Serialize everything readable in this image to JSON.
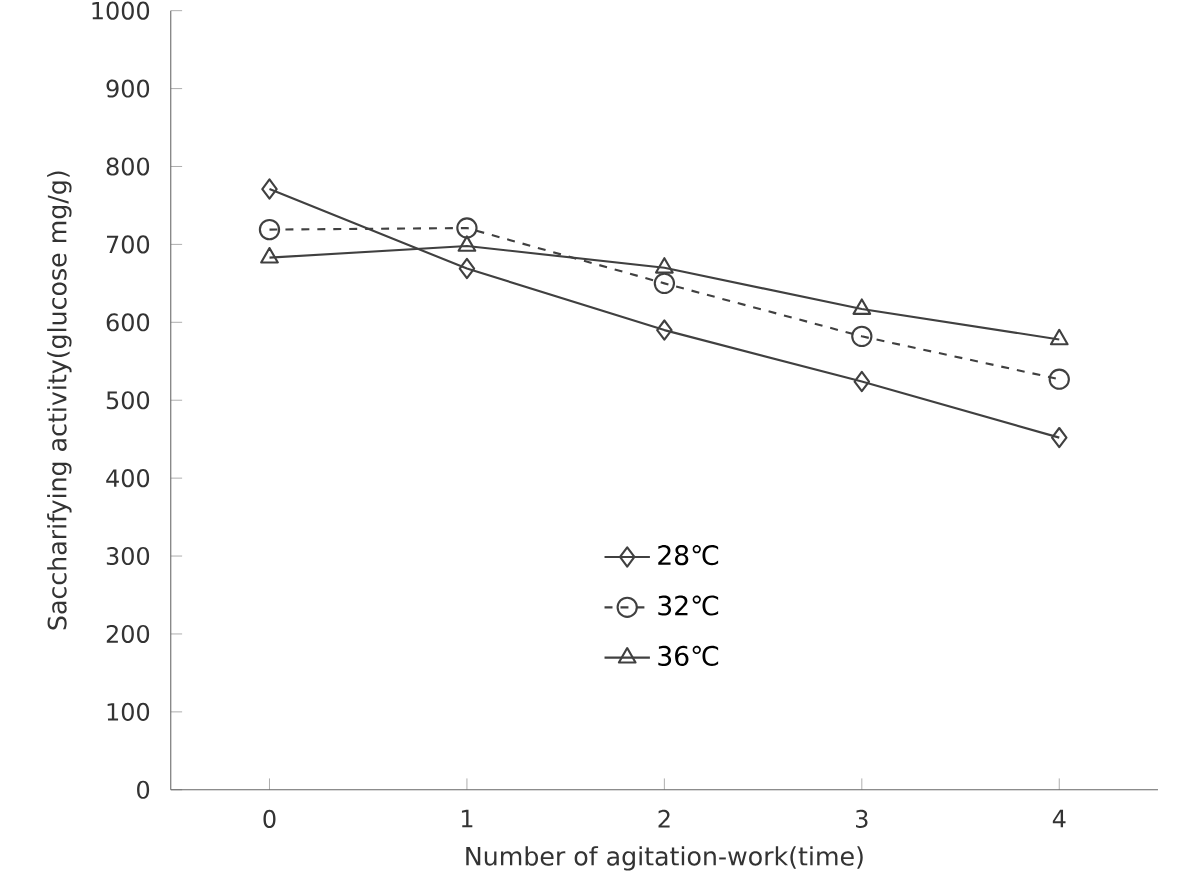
{
  "chart_data": {
    "type": "line",
    "xlabel": "Number of  agitation-work(time)",
    "ylabel": "Saccharifying  activity(glucose  mg/g)",
    "x": [
      0,
      1,
      2,
      3,
      4
    ],
    "xlim": [
      -0.5,
      4.5
    ],
    "xticks": [
      0,
      1,
      2,
      3,
      4
    ],
    "ylim": [
      0,
      1000
    ],
    "yticks": [
      0,
      100,
      200,
      300,
      400,
      500,
      600,
      700,
      800,
      900,
      1000
    ],
    "legend": "bottom",
    "grid": false,
    "series": [
      {
        "name": "28℃",
        "color": "#404040",
        "marker": "diamond",
        "line_style": "solid",
        "values": [
          771,
          669,
          590,
          524,
          452
        ]
      },
      {
        "name": "32℃",
        "color": "#404040",
        "marker": "circle",
        "line_style": "dashed",
        "values": [
          719,
          721,
          650,
          582,
          527
        ]
      },
      {
        "name": "36℃",
        "color": "#404040",
        "marker": "triangle",
        "line_style": "solid",
        "values": [
          683,
          698,
          670,
          617,
          578
        ]
      }
    ]
  }
}
